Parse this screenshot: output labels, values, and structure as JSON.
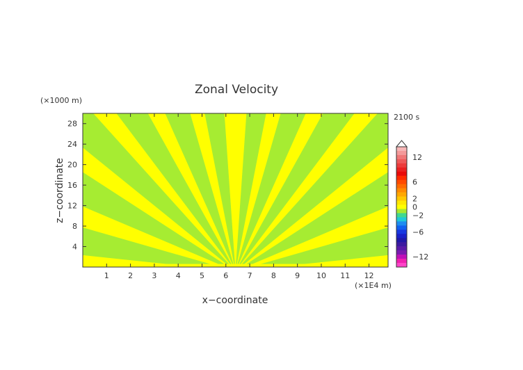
{
  "chart_data": {
    "type": "heatmap",
    "title": "Zonal Velocity",
    "xlabel": "x−coordinate",
    "ylabel": "z−coordinate",
    "x_unit": "(×1E4 m)",
    "y_unit": "(×1000 m)",
    "time_label": "2100 s",
    "x_ticks": [
      1,
      2,
      3,
      4,
      5,
      6,
      7,
      8,
      9,
      10,
      11,
      12
    ],
    "y_ticks": [
      4,
      8,
      12,
      16,
      20,
      24,
      28
    ],
    "xlim": [
      0,
      12.8
    ],
    "ylim": [
      0,
      30
    ],
    "field_description": "alternating bands of slightly positive (yellow) and slightly negative (green) zonal velocity radiating upward from a source near x=6.4E4 m at the surface",
    "colorbar": {
      "tick_labels": [
        "12",
        "6",
        "2",
        "0",
        "−2",
        "−6",
        "−12"
      ],
      "levels": [
        {
          "value": 14,
          "color": "#f7b6b6"
        },
        {
          "value": 13,
          "color": "#f49a9a"
        },
        {
          "value": 12,
          "color": "#f07878"
        },
        {
          "value": 11,
          "color": "#ee5a5a"
        },
        {
          "value": 10,
          "color": "#ec3c3c"
        },
        {
          "value": 9,
          "color": "#ea2020"
        },
        {
          "value": 8,
          "color": "#e80a0a"
        },
        {
          "value": 7,
          "color": "#ff2a00"
        },
        {
          "value": 6,
          "color": "#ff4a00"
        },
        {
          "value": 5,
          "color": "#ff6a00"
        },
        {
          "value": 4,
          "color": "#ff8a00"
        },
        {
          "value": 3,
          "color": "#ffa800"
        },
        {
          "value": 2,
          "color": "#ffc800"
        },
        {
          "value": 1,
          "color": "#ffe800"
        },
        {
          "value": 0,
          "color": "#ffff00"
        },
        {
          "value": -1,
          "color": "#a8e830"
        },
        {
          "value": -2,
          "color": "#40d890"
        },
        {
          "value": -3,
          "color": "#20c8d8"
        },
        {
          "value": -4,
          "color": "#1e8cf0"
        },
        {
          "value": -5,
          "color": "#1060f0"
        },
        {
          "value": -6,
          "color": "#1838e0"
        },
        {
          "value": -7,
          "color": "#1a20c8"
        },
        {
          "value": -8,
          "color": "#2018a8"
        },
        {
          "value": -9,
          "color": "#3c1aa0"
        },
        {
          "value": -10,
          "color": "#5a1aa8"
        },
        {
          "value": -11,
          "color": "#7a1ab0"
        },
        {
          "value": -12,
          "color": "#c010b8"
        },
        {
          "value": -13,
          "color": "#f020b0"
        },
        {
          "value": -14,
          "color": "#ff44c8"
        }
      ]
    },
    "colors": {
      "positive": "#ffff00",
      "negative": "#a6ec32"
    }
  }
}
